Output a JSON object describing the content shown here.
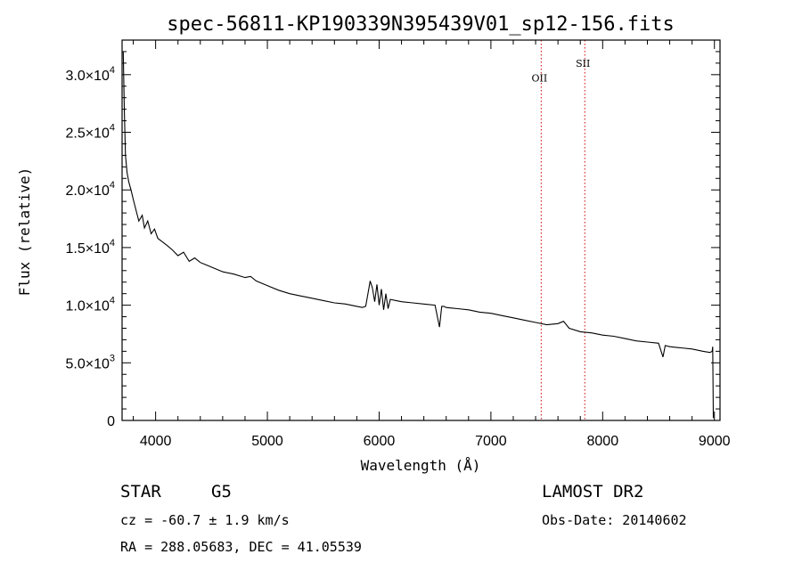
{
  "chart_data": {
    "type": "line",
    "title": "spec-56811-KP190339N395439V01_sp12-156.fits",
    "xlabel": "Wavelength (Å)",
    "ylabel": "Flux (relative)",
    "xlim": [
      3700,
      9050
    ],
    "ylim": [
      0,
      33000
    ],
    "x_ticks": [
      4000,
      5000,
      6000,
      7000,
      8000,
      9000
    ],
    "y_ticks": [
      {
        "value": 0,
        "label": "0"
      },
      {
        "value": 5000,
        "mantissa": "5.0",
        "exponent": "3"
      },
      {
        "value": 10000,
        "mantissa": "1.0",
        "exponent": "4"
      },
      {
        "value": 15000,
        "mantissa": "1.5",
        "exponent": "4"
      },
      {
        "value": 20000,
        "mantissa": "2.0",
        "exponent": "4"
      },
      {
        "value": 25000,
        "mantissa": "2.5",
        "exponent": "4"
      },
      {
        "value": 30000,
        "mantissa": "3.0",
        "exponent": "4"
      }
    ],
    "series": [
      {
        "x": [
          3710,
          3720,
          3730,
          3745,
          3760,
          3780,
          3800,
          3820,
          3850,
          3880,
          3900,
          3930,
          3960,
          3990,
          4020,
          4060,
          4100,
          4150,
          4200,
          4250,
          4300,
          4350,
          4400,
          4450,
          4500,
          4600,
          4700,
          4800,
          4850,
          4900,
          5000,
          5100,
          5200,
          5300,
          5400,
          5500,
          5600,
          5700,
          5800,
          5850,
          5880,
          5900,
          5920,
          5940,
          5960,
          5980,
          6000,
          6020,
          6040,
          6060,
          6080,
          6100,
          6150,
          6200,
          6300,
          6400,
          6500,
          6540,
          6560,
          6580,
          6600,
          6700,
          6800,
          6900,
          7000,
          7100,
          7200,
          7300,
          7400,
          7500,
          7600,
          7650,
          7700,
          7800,
          7900,
          8000,
          8100,
          8200,
          8300,
          8400,
          8500,
          8540,
          8560,
          8600,
          8700,
          8800,
          8900,
          8960,
          8980,
          8985,
          8990
        ],
        "y": [
          32000,
          27000,
          23000,
          21500,
          20700,
          20000,
          19200,
          18400,
          17300,
          17800,
          16700,
          17300,
          16200,
          16600,
          15800,
          15500,
          15200,
          14800,
          14300,
          14600,
          13800,
          14100,
          13700,
          13500,
          13300,
          12900,
          12700,
          12400,
          12500,
          12100,
          11700,
          11300,
          11000,
          10800,
          10600,
          10400,
          10200,
          10100,
          9900,
          9800,
          9900,
          11000,
          12100,
          11500,
          10300,
          11800,
          10000,
          11400,
          9600,
          11000,
          9700,
          10500,
          10400,
          10300,
          10200,
          10100,
          10000,
          8100,
          9900,
          9900,
          9800,
          9700,
          9600,
          9400,
          9300,
          9100,
          8900,
          8700,
          8500,
          8300,
          8400,
          8600,
          8000,
          7700,
          7600,
          7400,
          7300,
          7100,
          6900,
          6800,
          6700,
          5500,
          6500,
          6400,
          6300,
          6200,
          6000,
          5900,
          6000,
          6400,
          200
        ]
      }
    ],
    "lines": [
      {
        "x": 7450,
        "label": "OII",
        "label_y": 29400
      },
      {
        "x": 7840,
        "label": "SII",
        "label_y": 30700
      }
    ],
    "line_color": "#cc0000",
    "grid": false
  },
  "info": {
    "object_class": "STAR",
    "subclass": "G5",
    "survey": "LAMOST DR2",
    "cz": "cz = -60.7 ± 1.9 km/s",
    "obs_date": "Obs-Date: 20140602",
    "coords": "RA = 288.05683, DEC =  41.05539"
  }
}
